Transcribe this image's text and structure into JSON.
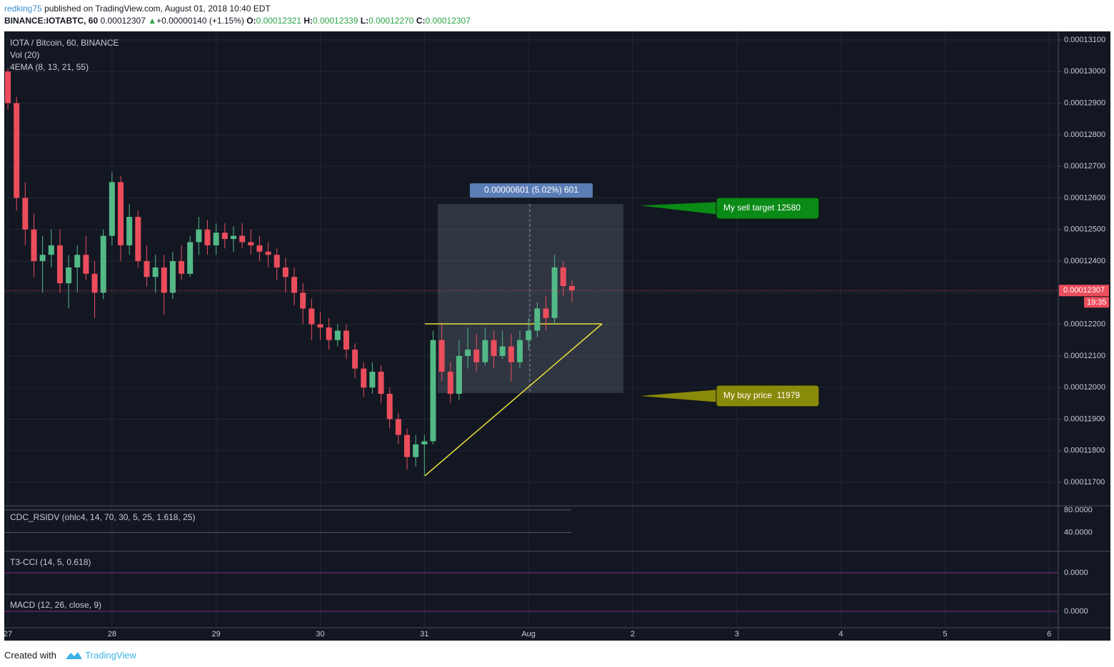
{
  "header": {
    "publisher": "redking75",
    "published": "published on TradingView.com, August 01, 2018 10:40 EDT",
    "symbol": "BINANCE:IOTABTC, 60",
    "last": "0.00012307",
    "arrow": "▲",
    "change": "+0.00000140 (+1.15%)",
    "ohlc": [
      {
        "key": "O:",
        "value": "0.00012321"
      },
      {
        "key": "H:",
        "value": "0.00012339"
      },
      {
        "key": "L:",
        "value": "0.00012270"
      },
      {
        "key": "C:",
        "value": "0.00012307"
      }
    ]
  },
  "chart_data": {
    "type": "candlestick",
    "legend": [
      "IOTA / Bitcoin, 60, BINANCE",
      "Vol (20)",
      "4EMA (8, 13, 21, 55)"
    ],
    "x": [
      0,
      2,
      4,
      6,
      8,
      10,
      12,
      14,
      16,
      18,
      20,
      22,
      24,
      26,
      28,
      30,
      32,
      34,
      36,
      38,
      40,
      42,
      44,
      46,
      48,
      50,
      52,
      54,
      56,
      58,
      60,
      62,
      64,
      66,
      68,
      70,
      72,
      74,
      76,
      78,
      80,
      82,
      84,
      86,
      88,
      90,
      92,
      94,
      96,
      98,
      100,
      102,
      104,
      106,
      108,
      110,
      112,
      114,
      116,
      118,
      120,
      122,
      124,
      126,
      128,
      130
    ],
    "open": [
      0.00013,
      0.000129,
      0.000126,
      0.000125,
      0.000124,
      0.0001242,
      0.0001245,
      0.0001233,
      0.0001238,
      0.0001242,
      0.0001236,
      0.000123,
      0.0001248,
      0.0001265,
      0.0001245,
      0.0001254,
      0.000124,
      0.0001235,
      0.0001238,
      0.000123,
      0.000124,
      0.0001236,
      0.0001246,
      0.000125,
      0.0001245,
      0.0001249,
      0.0001247,
      0.0001248,
      0.0001246,
      0.0001245,
      0.0001243,
      0.0001242,
      0.0001238,
      0.0001235,
      0.000123,
      0.0001225,
      0.000122,
      0.0001219,
      0.0001215,
      0.0001218,
      0.0001212,
      0.0001206,
      0.00012,
      0.0001205,
      0.0001198,
      0.000119,
      0.0001185,
      0.0001178,
      0.0001182,
      0.0001183,
      0.0001215,
      0.0001205,
      0.0001198,
      0.000121,
      0.0001212,
      0.0001208,
      0.0001215,
      0.000121,
      0.0001213,
      0.0001208,
      0.0001215,
      0.0001218,
      0.0001225,
      0.0001222,
      0.0001238,
      0.00012321
    ],
    "high": [
      0.0001301,
      0.0001292,
      0.0001265,
      0.0001255,
      0.0001248,
      0.000125,
      0.000125,
      0.0001242,
      0.0001245,
      0.0001248,
      0.000124,
      0.000125,
      0.0001268,
      0.0001267,
      0.0001258,
      0.0001256,
      0.0001245,
      0.0001242,
      0.0001242,
      0.0001243,
      0.0001245,
      0.0001248,
      0.0001254,
      0.0001253,
      0.0001252,
      0.0001252,
      0.0001251,
      0.0001252,
      0.000125,
      0.0001248,
      0.0001246,
      0.0001244,
      0.0001241,
      0.0001238,
      0.0001233,
      0.0001228,
      0.0001224,
      0.0001222,
      0.000122,
      0.000122,
      0.0001214,
      0.0001208,
      0.0001208,
      0.0001207,
      0.00012,
      0.0001192,
      0.0001187,
      0.0001185,
      0.0001185,
      0.0001218,
      0.000122,
      0.0001208,
      0.0001215,
      0.0001219,
      0.0001217,
      0.0001219,
      0.0001218,
      0.0001218,
      0.0001217,
      0.0001218,
      0.0001222,
      0.0001227,
      0.0001229,
      0.0001242,
      0.000124,
      0.00012339
    ],
    "low": [
      0.0001288,
      0.0001256,
      0.0001245,
      0.0001235,
      0.000123,
      0.0001238,
      0.000123,
      0.0001225,
      0.000123,
      0.0001234,
      0.0001222,
      0.0001228,
      0.0001245,
      0.000124,
      0.0001242,
      0.0001238,
      0.0001232,
      0.000123,
      0.0001223,
      0.0001228,
      0.0001234,
      0.0001235,
      0.0001242,
      0.0001242,
      0.0001242,
      0.0001244,
      0.0001243,
      0.0001244,
      0.0001242,
      0.000124,
      0.0001238,
      0.0001234,
      0.000123,
      0.0001226,
      0.000122,
      0.0001215,
      0.0001215,
      0.0001212,
      0.0001213,
      0.0001209,
      0.0001203,
      0.0001197,
      0.0001198,
      0.0001195,
      0.0001187,
      0.0001182,
      0.0001174,
      0.0001175,
      0.0001172,
      0.0001182,
      0.0001202,
      0.0001195,
      0.0001196,
      0.0001206,
      0.0001205,
      0.0001207,
      0.0001206,
      0.0001209,
      0.0001202,
      0.0001206,
      0.0001212,
      0.0001216,
      0.0001218,
      0.000122,
      0.0001229,
      0.0001227
    ],
    "close": [
      0.000129,
      0.000126,
      0.000125,
      0.000124,
      0.0001242,
      0.0001245,
      0.0001233,
      0.0001238,
      0.0001242,
      0.0001236,
      0.000123,
      0.0001248,
      0.0001265,
      0.0001245,
      0.0001254,
      0.000124,
      0.0001235,
      0.0001238,
      0.000123,
      0.000124,
      0.0001236,
      0.0001246,
      0.000125,
      0.0001245,
      0.0001249,
      0.0001247,
      0.0001248,
      0.0001246,
      0.0001245,
      0.0001243,
      0.0001242,
      0.0001238,
      0.0001235,
      0.000123,
      0.0001225,
      0.000122,
      0.0001219,
      0.0001215,
      0.0001218,
      0.0001212,
      0.0001206,
      0.00012,
      0.0001205,
      0.0001198,
      0.000119,
      0.0001185,
      0.0001178,
      0.0001182,
      0.0001183,
      0.0001215,
      0.0001205,
      0.0001198,
      0.000121,
      0.0001212,
      0.0001208,
      0.0001215,
      0.000121,
      0.0001213,
      0.0001208,
      0.0001215,
      0.0001218,
      0.0001225,
      0.0001222,
      0.0001238,
      0.00012321,
      0.00012307
    ],
    "colors": {
      "up": "#53b987",
      "down": "#eb4d5c"
    },
    "xlim": [
      -0.5,
      242.1
    ],
    "xticks": [
      {
        "value": 0,
        "label": "27"
      },
      {
        "value": 24,
        "label": "28"
      },
      {
        "value": 48,
        "label": "29"
      },
      {
        "value": 72,
        "label": "30"
      },
      {
        "value": 96,
        "label": "31"
      },
      {
        "value": 120,
        "label": "Aug"
      },
      {
        "value": 144,
        "label": "2"
      },
      {
        "value": 168,
        "label": "3"
      },
      {
        "value": 192,
        "label": "4"
      },
      {
        "value": 216,
        "label": "5"
      },
      {
        "value": 240,
        "label": "6"
      }
    ],
    "ylim": [
      0.00011628,
      0.00013127
    ],
    "yticks": [
      {
        "value": 0.000117,
        "label": "0.00011700"
      },
      {
        "value": 0.000118,
        "label": "0.00011800"
      },
      {
        "value": 0.000119,
        "label": "0.00011900"
      },
      {
        "value": 0.00012,
        "label": "0.00012000"
      },
      {
        "value": 0.000121,
        "label": "0.00012100"
      },
      {
        "value": 0.000122,
        "label": "0.00012200"
      },
      {
        "value": 0.000123,
        "label": "0.00012300"
      },
      {
        "value": 0.000124,
        "label": "0.00012400"
      },
      {
        "value": 0.000125,
        "label": "0.00012500"
      },
      {
        "value": 0.000126,
        "label": "0.00012600"
      },
      {
        "value": 0.000127,
        "label": "0.00012700"
      },
      {
        "value": 0.000128,
        "label": "0.00012800"
      },
      {
        "value": 0.000129,
        "label": "0.00012900"
      },
      {
        "value": 0.00013,
        "label": "0.00013000"
      },
      {
        "value": 0.000131,
        "label": "0.00013100"
      }
    ],
    "grid": true,
    "price_tag": "0.00012307",
    "countdown": "19:35",
    "measure": "0.00000601 (5.02%) 601",
    "callouts": [
      "My sell target 12580",
      "My buy price  11979"
    ]
  },
  "indicators": [
    {
      "title": "CDC_RSIDV (ohlc4, 14, 70, 30, 5, 25, 1.618, 25)",
      "ylim": [
        7.5,
        85
      ],
      "yticks": [
        {
          "value": 80,
          "label": "80.0000"
        },
        {
          "value": 40,
          "label": "40.0000"
        }
      ]
    },
    {
      "title": "T3-CCI (14, 5, 0.618)",
      "ylim": [
        -150,
        150
      ],
      "yticks": [
        {
          "value": 0,
          "label": "0.0000"
        }
      ]
    },
    {
      "title": "MACD (12, 26, close, 9)",
      "ylim": [
        -1,
        1
      ],
      "yticks": [
        {
          "value": 0,
          "label": "0.0000"
        }
      ]
    }
  ],
  "footer": {
    "created": "Created with",
    "brand": "TradingView"
  }
}
